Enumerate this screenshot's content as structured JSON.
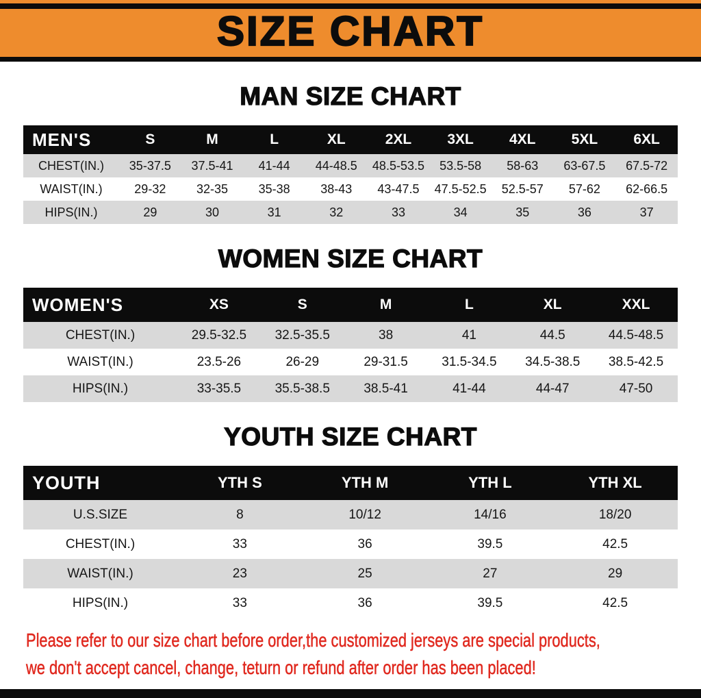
{
  "banner": {
    "title": "SIZE CHART"
  },
  "colors": {
    "banner_bg": "#ee8c2d",
    "ink": "#0c0c0c",
    "row_gray": "#d9d9d9",
    "note_red": "#e0291f"
  },
  "sections": [
    {
      "heading": "MAN SIZE CHART",
      "table": {
        "header": [
          "MEN'S",
          "S",
          "M",
          "L",
          "XL",
          "2XL",
          "3XL",
          "4XL",
          "5XL",
          "6XL"
        ],
        "rows": [
          [
            "CHEST(IN.)",
            "35-37.5",
            "37.5-41",
            "41-44",
            "44-48.5",
            "48.5-53.5",
            "53.5-58",
            "58-63",
            "63-67.5",
            "67.5-72"
          ],
          [
            "WAIST(IN.)",
            "29-32",
            "32-35",
            "35-38",
            "38-43",
            "43-47.5",
            "47.5-52.5",
            "52.5-57",
            "57-62",
            "62-66.5"
          ],
          [
            "HIPS(IN.)",
            "29",
            "30",
            "31",
            "32",
            "33",
            "34",
            "35",
            "36",
            "37"
          ]
        ]
      }
    },
    {
      "heading": "WOMEN SIZE CHART",
      "table": {
        "header": [
          "WOMEN'S",
          "XS",
          "S",
          "M",
          "L",
          "XL",
          "XXL"
        ],
        "rows": [
          [
            "CHEST(IN.)",
            "29.5-32.5",
            "32.5-35.5",
            "38",
            "41",
            "44.5",
            "44.5-48.5"
          ],
          [
            "WAIST(IN.)",
            "23.5-26",
            "26-29",
            "29-31.5",
            "31.5-34.5",
            "34.5-38.5",
            "38.5-42.5"
          ],
          [
            "HIPS(IN.)",
            "33-35.5",
            "35.5-38.5",
            "38.5-41",
            "41-44",
            "44-47",
            "47-50"
          ]
        ]
      }
    },
    {
      "heading": "YOUTH SIZE CHART",
      "table": {
        "header": [
          "YOUTH",
          "YTH S",
          "YTH M",
          "YTH L",
          "YTH XL"
        ],
        "rows": [
          [
            "U.S.SIZE",
            "8",
            "10/12",
            "14/16",
            "18/20"
          ],
          [
            "CHEST(IN.)",
            "33",
            "36",
            "39.5",
            "42.5"
          ],
          [
            "WAIST(IN.)",
            "23",
            "25",
            "27",
            "29"
          ],
          [
            "HIPS(IN.)",
            "33",
            "36",
            "39.5",
            "42.5"
          ]
        ]
      }
    }
  ],
  "footer": {
    "line1": "Please refer to our size chart before order,the customized jerseys are special products,",
    "line2": "we don't accept cancel, change, teturn or refund after order has been placed!"
  }
}
